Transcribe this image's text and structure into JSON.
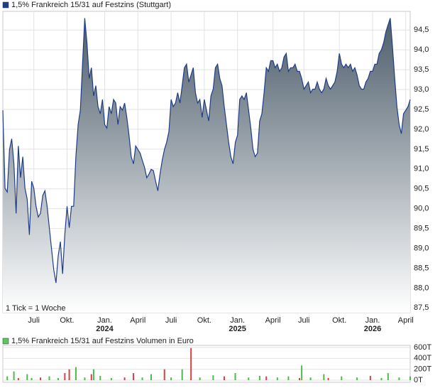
{
  "chart_data": [
    {
      "type": "area",
      "title": "1,5% Frankreich 15/31 auf Festzins (Stuttgart)",
      "annotation": "1 Tick = 1 Woche",
      "color": "#1f3c88",
      "fill_color": "#4d5d6b",
      "legend_color": "#1f3c88",
      "grid": true,
      "values": [
        92.48,
        90.51,
        90.42,
        91.49,
        91.76,
        91.13,
        89.88,
        91.58,
        90.78,
        91.31,
        90.51,
        90.24,
        89.34,
        90.69,
        90.51,
        90.06,
        89.79,
        89.88,
        90.33,
        90.45,
        90.06,
        89.52,
        88.99,
        88.45,
        88.13,
        88.81,
        89.17,
        88.36,
        89.34,
        90.06,
        89.52,
        90.06,
        90.06,
        91.31,
        92.12,
        92.48,
        93.64,
        94.8,
        94.18,
        93.28,
        93.55,
        92.84,
        93.1,
        92.57,
        92.39,
        92.75,
        92.12,
        92.03,
        92.57,
        92.39,
        92.75,
        92.66,
        92.12,
        92.57,
        92.48,
        92.66,
        92.3,
        91.85,
        91.31,
        91.13,
        91.58,
        91.49,
        91.4,
        91.22,
        91.04,
        90.78,
        90.87,
        90.99,
        90.96,
        90.69,
        90.45,
        90.87,
        91.22,
        91.49,
        91.67,
        91.94,
        92.75,
        92.57,
        92.66,
        92.92,
        92.66,
        93.1,
        93.55,
        93.64,
        93.19,
        93.37,
        93.55,
        92.92,
        92.66,
        92.75,
        92.3,
        92.75,
        92.48,
        92.21,
        92.84,
        93.01,
        93.55,
        93.64,
        93.28,
        93.1,
        92.57,
        92.12,
        91.67,
        91.31,
        91.13,
        91.67,
        91.85,
        92.75,
        92.84,
        92.75,
        92.92,
        92.48,
        92.03,
        91.49,
        91.31,
        91.4,
        92.21,
        92.39,
        92.92,
        93.55,
        93.46,
        93.73,
        93.73,
        93.55,
        93.64,
        93.46,
        93.55,
        93.82,
        93.91,
        93.46,
        93.55,
        93.55,
        93.64,
        93.46,
        93.46,
        93.28,
        93.01,
        93.1,
        93.19,
        92.92,
        93.01,
        93.01,
        93.19,
        93.01,
        92.92,
        93.01,
        93.28,
        93.1,
        93.01,
        93.1,
        93.19,
        93.46,
        93.91,
        93.64,
        93.55,
        93.64,
        93.55,
        93.64,
        93.46,
        93.55,
        93.37,
        93.1,
        93.01,
        93.01,
        93.19,
        93.28,
        93.46,
        93.46,
        93.64,
        93.64,
        93.91,
        94.0,
        94.18,
        94.45,
        94.63,
        94.8,
        94.09,
        93.28,
        92.57,
        92.12,
        91.89,
        92.39,
        92.48,
        92.57,
        92.75
      ],
      "xlim": [
        0,
        184
      ],
      "xticks": [
        {
          "value": 14,
          "label": "Juli"
        },
        {
          "value": 29,
          "label": "Okt."
        },
        {
          "value": 46,
          "label": "Jan.",
          "sublabel": "2024"
        },
        {
          "value": 61,
          "label": "April"
        },
        {
          "value": 76,
          "label": "Juli"
        },
        {
          "value": 91,
          "label": "Okt."
        },
        {
          "value": 106,
          "label": "Jan.",
          "sublabel": "2025"
        },
        {
          "value": 122,
          "label": "April"
        },
        {
          "value": 136,
          "label": "Juli"
        },
        {
          "value": 152,
          "label": "Okt."
        },
        {
          "value": 167,
          "label": "Jan.",
          "sublabel": "2026"
        },
        {
          "value": 182,
          "label": "April"
        }
      ],
      "ylim": [
        87.38,
        94.97
      ],
      "yticks": [
        {
          "value": 87.5,
          "label": "87,5"
        },
        {
          "value": 88,
          "label": "88,0"
        },
        {
          "value": 88.5,
          "label": "88,5"
        },
        {
          "value": 89,
          "label": "89,0"
        },
        {
          "value": 89.5,
          "label": "89,5"
        },
        {
          "value": 90,
          "label": "90,0"
        },
        {
          "value": 90.5,
          "label": "90,5"
        },
        {
          "value": 91,
          "label": "91,0"
        },
        {
          "value": 91.5,
          "label": "91,5"
        },
        {
          "value": 92,
          "label": "92,0"
        },
        {
          "value": 92.5,
          "label": "92,5"
        },
        {
          "value": 93,
          "label": "93,0"
        },
        {
          "value": 93.5,
          "label": "93,5"
        },
        {
          "value": 94,
          "label": "94,0"
        },
        {
          "value": 94.5,
          "label": "94,5"
        }
      ]
    },
    {
      "type": "bar",
      "title": "1,5% Frankreich 15/31 auf Festzins Volumen in Euro",
      "legend_color": "#5cc85c",
      "grid": true,
      "x": [
        2,
        5,
        7,
        11,
        13,
        17,
        21,
        25,
        28,
        30,
        33,
        37,
        40,
        41,
        44,
        49,
        55,
        59,
        63,
        67,
        73,
        76,
        81,
        85,
        89,
        95,
        100,
        105,
        111,
        116,
        119,
        124,
        129,
        134,
        135,
        139,
        145,
        147,
        153,
        160,
        166,
        171,
        174,
        179,
        184
      ],
      "values": [
        70,
        160,
        40,
        110,
        40,
        50,
        70,
        40,
        130,
        200,
        240,
        50,
        110,
        200,
        80,
        40,
        50,
        130,
        50,
        110,
        200,
        50,
        200,
        590,
        50,
        90,
        70,
        130,
        50,
        80,
        70,
        50,
        70,
        40,
        270,
        50,
        110,
        40,
        70,
        50,
        80,
        40,
        130,
        50,
        70
      ],
      "colors": [
        "#4cbb4c",
        "#4cbb4c",
        "#d94040",
        "#4cbb4c",
        "#4cbb4c",
        "#d94040",
        "#4cbb4c",
        "#4cbb4c",
        "#d94040",
        "#d94040",
        "#4cbb4c",
        "#4cbb4c",
        "#d94040",
        "#4cbb4c",
        "#4cbb4c",
        "#4cbb4c",
        "#d94040",
        "#d94040",
        "#4cbb4c",
        "#4cbb4c",
        "#d94040",
        "#4cbb4c",
        "#4cbb4c",
        "#d94040",
        "#4cbb4c",
        "#4cbb4c",
        "#d94040",
        "#4cbb4c",
        "#4cbb4c",
        "#4cbb4c",
        "#d94040",
        "#4cbb4c",
        "#4cbb4c",
        "#d94040",
        "#4cbb4c",
        "#4cbb4c",
        "#4cbb4c",
        "#d94040",
        "#4cbb4c",
        "#4cbb4c",
        "#d94040",
        "#4cbb4c",
        "#4cbb4c",
        "#4cbb4c",
        "#4cbb4c"
      ],
      "xlim": [
        0,
        184
      ],
      "ylim": [
        0,
        600
      ],
      "yticks": [
        {
          "value": 0,
          "label": "0T"
        },
        {
          "value": 200,
          "label": "200T"
        },
        {
          "value": 400,
          "label": "400T"
        },
        {
          "value": 600,
          "label": "600T"
        }
      ]
    }
  ]
}
